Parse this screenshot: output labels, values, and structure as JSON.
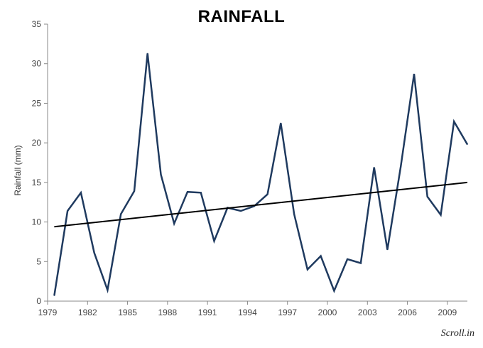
{
  "chart_data": {
    "type": "line",
    "title": "RAINFALL",
    "ylabel": "Rainfall (mm)",
    "xlabel": "",
    "ylim": [
      0,
      35
    ],
    "xlim": [
      1979,
      2010.5
    ],
    "y_ticks": [
      0,
      5,
      10,
      15,
      20,
      25,
      30,
      35
    ],
    "x_ticks": [
      1979,
      1982,
      1985,
      1988,
      1991,
      1994,
      1997,
      2000,
      2003,
      2006,
      2009
    ],
    "grid": false,
    "series": [
      {
        "color": "#1f3a5f",
        "x": [
          1979.5,
          1980.5,
          1981.5,
          1982.5,
          1983.5,
          1984.5,
          1985.5,
          1986.5,
          1987.5,
          1988.5,
          1989.5,
          1990.5,
          1991.5,
          1992.5,
          1993.5,
          1994.5,
          1995.5,
          1996.5,
          1997.5,
          1998.5,
          1999.5,
          2000.5,
          2001.5,
          2002.5,
          2003.5,
          2004.5,
          2005.5,
          2006.5,
          2007.5,
          2008.5,
          2009.5,
          2010.5
        ],
        "y": [
          0.7,
          11.4,
          13.7,
          6.1,
          1.4,
          11.0,
          13.9,
          31.3,
          16.0,
          9.8,
          13.8,
          13.7,
          7.6,
          11.8,
          11.4,
          12.0,
          13.5,
          22.5,
          11.0,
          4.0,
          5.7,
          1.3,
          5.3,
          4.8,
          16.9,
          6.5,
          17.0,
          28.7,
          13.2,
          10.9,
          22.7,
          19.8
        ]
      }
    ],
    "trendline": {
      "color": "#000000",
      "x": [
        1979.5,
        2010.5
      ],
      "y": [
        9.4,
        15.0
      ]
    }
  },
  "brand": "Scroll.in"
}
